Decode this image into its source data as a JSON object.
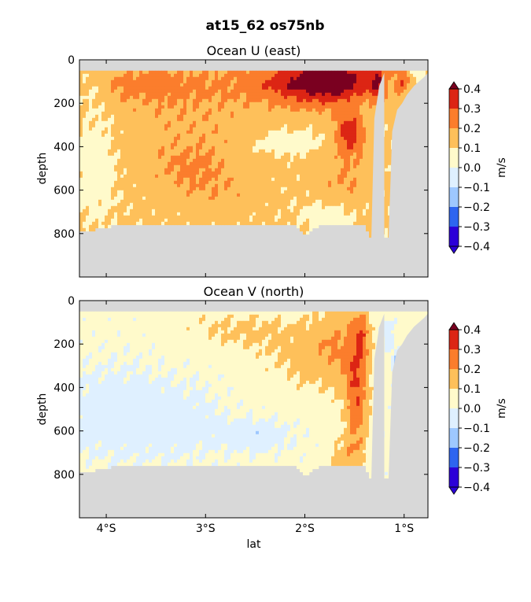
{
  "figure": {
    "title": "at15_62 os75nb"
  },
  "chart_data": [
    {
      "type": "heatmap",
      "title": "Ocean U (east)",
      "xlabel": "",
      "ylabel": "depth",
      "xlim": [
        -4.27,
        -0.76
      ],
      "ylim": [
        1000,
        0
      ],
      "xticks": [
        -4,
        -3,
        -2,
        -1
      ],
      "xtick_labels": [
        "4°S",
        "3°S",
        "2°S",
        "1°S"
      ],
      "xtick_labels_visible": false,
      "yticks": [
        0,
        200,
        400,
        600,
        800
      ],
      "ytick_labels": [
        "0",
        "200",
        "400",
        "600",
        "800"
      ],
      "colorbar": {
        "label": "m/s",
        "levels": [
          -0.4,
          -0.3,
          -0.2,
          -0.1,
          0.0,
          0.1,
          0.2,
          0.3,
          0.4
        ],
        "level_labels": [
          "−0.4",
          "−0.3",
          "−0.2",
          "−0.1",
          "0.0",
          "0.1",
          "0.2",
          "0.3",
          "0.4"
        ],
        "extend": "both"
      },
      "data_top_depth": 50,
      "bottom_profile": {
        "lat": [
          -4.27,
          -4.2,
          -4.1,
          -4.0,
          -3.9,
          -3.8,
          -3.7,
          -3.6,
          -3.5,
          -3.4,
          -3.3,
          -3.2,
          -3.1,
          -3.0,
          -2.9,
          -2.8,
          -2.7,
          -2.6,
          -2.5,
          -2.4,
          -2.3,
          -2.2,
          -2.1,
          -2.05,
          -2.0,
          -1.95,
          -1.9,
          -1.8,
          -1.7,
          -1.6,
          -1.5,
          -1.4,
          -1.37,
          -1.35
        ],
        "depth": [
          785,
          790,
          780,
          770,
          765,
          765,
          760,
          760,
          760,
          760,
          760,
          760,
          760,
          760,
          760,
          760,
          760,
          760,
          760,
          760,
          760,
          760,
          760,
          790,
          810,
          790,
          770,
          760,
          760,
          760,
          760,
          760,
          790,
          790
        ]
      },
      "land": [
        {
          "lat": [
            -1.34,
            -1.3,
            -1.25,
            -1.2,
            -1.2,
            -1.34
          ],
          "depth": [
            1000,
            270,
            120,
            60,
            1000,
            1000
          ]
        },
        {
          "lat": [
            -1.17,
            -1.12,
            -1.07,
            -1.02,
            -0.97,
            -0.9,
            -0.85,
            -0.8,
            -0.76,
            -0.76,
            -1.17
          ],
          "depth": [
            1000,
            330,
            230,
            200,
            160,
            120,
            100,
            80,
            60,
            1000,
            1000
          ]
        }
      ],
      "field": {
        "background": 0.12,
        "blobs": [
          {
            "lat": -4.1,
            "depth": 480,
            "slat": 0.14,
            "sdep": 170,
            "amp": -0.09
          },
          {
            "lat": -4.15,
            "depth": 130,
            "slat": 0.1,
            "sdep": 60,
            "amp": -0.06
          },
          {
            "lat": -3.6,
            "depth": 110,
            "slat": 0.45,
            "sdep": 70,
            "amp": 0.1
          },
          {
            "lat": -3.1,
            "depth": 300,
            "slat": 0.55,
            "sdep": 160,
            "amp": 0.06
          },
          {
            "lat": -3.15,
            "depth": 500,
            "slat": 0.3,
            "sdep": 70,
            "amp": 0.07
          },
          {
            "lat": -2.9,
            "depth": 620,
            "slat": 0.3,
            "sdep": 60,
            "amp": 0.05
          },
          {
            "lat": -2.2,
            "depth": 380,
            "slat": 0.25,
            "sdep": 40,
            "amp": -0.1
          },
          {
            "lat": -2.2,
            "depth": 100,
            "slat": 0.45,
            "sdep": 70,
            "amp": 0.12
          },
          {
            "lat": -1.9,
            "depth": 100,
            "slat": 0.3,
            "sdep": 80,
            "amp": 0.2
          },
          {
            "lat": -1.6,
            "depth": 90,
            "slat": 0.25,
            "sdep": 70,
            "amp": 0.18
          },
          {
            "lat": -1.55,
            "depth": 340,
            "slat": 0.1,
            "sdep": 70,
            "amp": 0.25
          },
          {
            "lat": -1.6,
            "depth": 560,
            "slat": 0.2,
            "sdep": 80,
            "amp": 0.08
          },
          {
            "lat": -1.75,
            "depth": 720,
            "slat": 0.2,
            "sdep": 50,
            "amp": -0.08
          },
          {
            "lat": -1.27,
            "depth": 100,
            "slat": 0.05,
            "sdep": 60,
            "amp": 0.2
          },
          {
            "lat": -1.02,
            "depth": 100,
            "slat": 0.06,
            "sdep": 50,
            "amp": 0.15
          },
          {
            "lat": -0.87,
            "depth": 60,
            "slat": 0.05,
            "sdep": 20,
            "amp": -0.14
          }
        ]
      }
    },
    {
      "type": "heatmap",
      "title": "Ocean V (north)",
      "xlabel": "lat",
      "ylabel": "depth",
      "xlim": [
        -4.27,
        -0.76
      ],
      "ylim": [
        1000,
        0
      ],
      "xticks": [
        -4,
        -3,
        -2,
        -1
      ],
      "xtick_labels": [
        "4°S",
        "3°S",
        "2°S",
        "1°S"
      ],
      "xtick_labels_visible": true,
      "yticks": [
        0,
        200,
        400,
        600,
        800
      ],
      "ytick_labels": [
        "0",
        "200",
        "400",
        "600",
        "800"
      ],
      "colorbar": {
        "label": "m/s",
        "levels": [
          -0.4,
          -0.3,
          -0.2,
          -0.1,
          0.0,
          0.1,
          0.2,
          0.3,
          0.4
        ],
        "level_labels": [
          "−0.4",
          "−0.3",
          "−0.2",
          "−0.1",
          "0.0",
          "0.1",
          "0.2",
          "0.3",
          "0.4"
        ],
        "extend": "both"
      },
      "data_top_depth": 50,
      "bottom_profile": {
        "lat": [
          -4.27,
          -4.2,
          -4.1,
          -4.0,
          -3.9,
          -3.8,
          -3.7,
          -3.6,
          -3.5,
          -3.4,
          -3.3,
          -3.2,
          -3.1,
          -3.0,
          -2.9,
          -2.8,
          -2.7,
          -2.6,
          -2.5,
          -2.4,
          -2.3,
          -2.2,
          -2.1,
          -2.05,
          -2.0,
          -1.95,
          -1.9,
          -1.8,
          -1.7,
          -1.6,
          -1.5,
          -1.4,
          -1.37,
          -1.35
        ],
        "depth": [
          785,
          790,
          780,
          770,
          765,
          765,
          760,
          760,
          760,
          760,
          760,
          760,
          760,
          760,
          760,
          760,
          760,
          760,
          760,
          760,
          760,
          760,
          760,
          790,
          810,
          790,
          770,
          760,
          760,
          760,
          760,
          760,
          790,
          790
        ]
      },
      "land": [
        {
          "lat": [
            -1.34,
            -1.3,
            -1.25,
            -1.2,
            -1.2,
            -1.34
          ],
          "depth": [
            1000,
            270,
            120,
            60,
            1000,
            1000
          ]
        },
        {
          "lat": [
            -1.17,
            -1.12,
            -1.07,
            -1.02,
            -0.97,
            -0.9,
            -0.85,
            -0.8,
            -0.76,
            -0.76,
            -1.17
          ],
          "depth": [
            1000,
            330,
            230,
            200,
            160,
            120,
            100,
            80,
            60,
            1000,
            1000
          ]
        }
      ],
      "field": {
        "background": 0.03,
        "blobs": [
          {
            "lat": -3.9,
            "depth": 520,
            "slat": 0.4,
            "sdep": 150,
            "amp": -0.09
          },
          {
            "lat": -3.2,
            "depth": 560,
            "slat": 0.3,
            "sdep": 120,
            "amp": -0.06
          },
          {
            "lat": -2.5,
            "depth": 620,
            "slat": 0.25,
            "sdep": 50,
            "amp": -0.1
          },
          {
            "lat": -2.7,
            "depth": 130,
            "slat": 0.4,
            "sdep": 70,
            "amp": 0.08
          },
          {
            "lat": -2.0,
            "depth": 250,
            "slat": 0.35,
            "sdep": 120,
            "amp": 0.09
          },
          {
            "lat": -1.65,
            "depth": 200,
            "slat": 0.2,
            "sdep": 150,
            "amp": 0.12
          },
          {
            "lat": -1.48,
            "depth": 450,
            "slat": 0.08,
            "sdep": 200,
            "amp": 0.24
          },
          {
            "lat": -1.42,
            "depth": 150,
            "slat": 0.05,
            "sdep": 80,
            "amp": 0.14
          },
          {
            "lat": -1.6,
            "depth": 720,
            "slat": 0.12,
            "sdep": 60,
            "amp": 0.1
          },
          {
            "lat": -1.05,
            "depth": 290,
            "slat": 0.04,
            "sdep": 40,
            "amp": -0.28
          },
          {
            "lat": -1.18,
            "depth": 160,
            "slat": 0.05,
            "sdep": 60,
            "amp": -0.08
          },
          {
            "lat": -0.88,
            "depth": 100,
            "slat": 0.06,
            "sdep": 40,
            "amp": 0.05
          }
        ]
      }
    }
  ]
}
